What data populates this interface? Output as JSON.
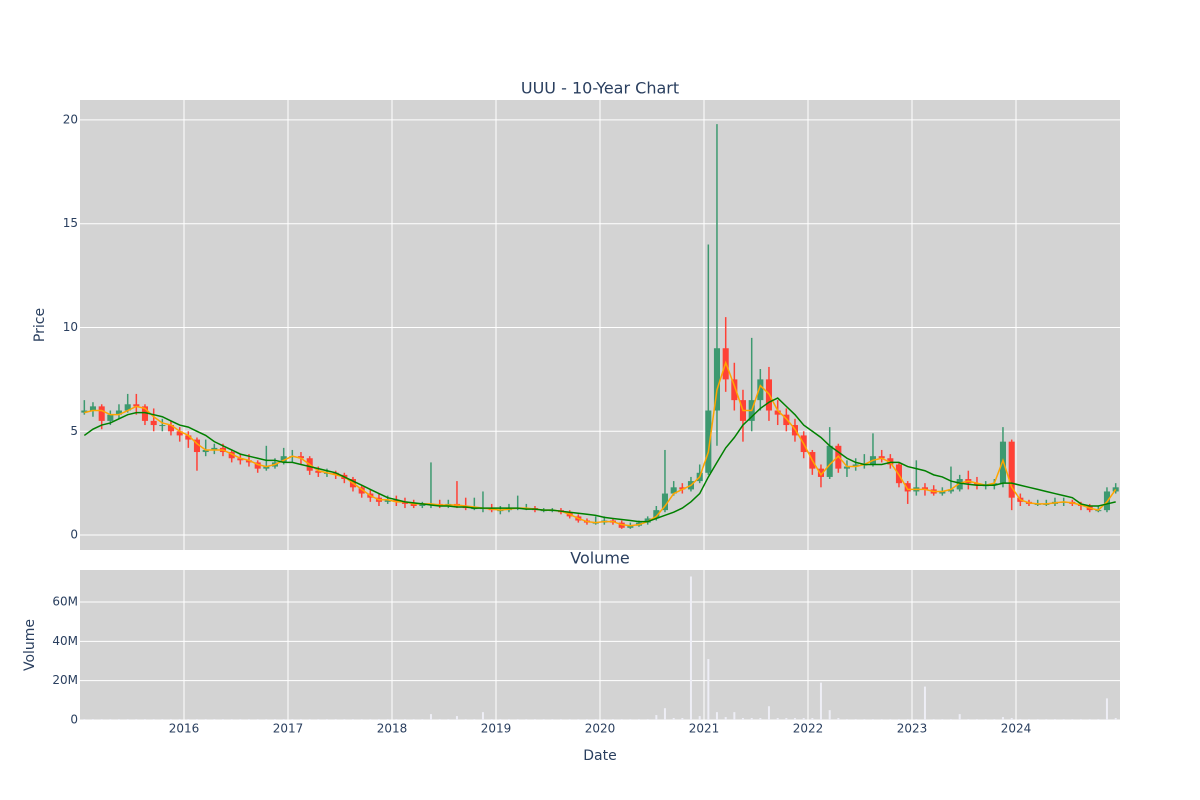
{
  "chart_data": [
    {
      "type": "candlestick",
      "title": "UUU - 10-Year Chart",
      "ylabel": "Price",
      "x": [
        2015,
        2015.083,
        2015.167,
        2015.25,
        2015.333,
        2015.417,
        2015.5,
        2015.583,
        2015.667,
        2015.75,
        2015.833,
        2015.917,
        2016,
        2016.083,
        2016.167,
        2016.25,
        2016.333,
        2016.417,
        2016.5,
        2016.583,
        2016.667,
        2016.75,
        2016.833,
        2016.917,
        2017,
        2017.083,
        2017.167,
        2017.25,
        2017.333,
        2017.417,
        2017.5,
        2017.583,
        2017.667,
        2017.75,
        2017.833,
        2017.917,
        2018,
        2018.083,
        2018.167,
        2018.25,
        2018.333,
        2018.417,
        2018.5,
        2018.583,
        2018.667,
        2018.75,
        2018.833,
        2018.917,
        2019,
        2019.083,
        2019.167,
        2019.25,
        2019.333,
        2019.417,
        2019.5,
        2019.583,
        2019.667,
        2019.75,
        2019.833,
        2019.917,
        2020,
        2020.083,
        2020.167,
        2020.25,
        2020.333,
        2020.417,
        2020.5,
        2020.583,
        2020.667,
        2020.75,
        2020.833,
        2020.917,
        2021,
        2021.083,
        2021.167,
        2021.25,
        2021.333,
        2021.417,
        2021.5,
        2021.583,
        2021.667,
        2021.75,
        2021.833,
        2021.917,
        2022,
        2022.083,
        2022.167,
        2022.25,
        2022.333,
        2022.417,
        2022.5,
        2022.583,
        2022.667,
        2022.75,
        2022.833,
        2022.917,
        2023,
        2023.083,
        2023.167,
        2023.25,
        2023.333,
        2023.417,
        2023.5,
        2023.583,
        2023.667,
        2023.75,
        2023.833,
        2023.917,
        2024,
        2024.083,
        2024.167,
        2024.25,
        2024.333,
        2024.417,
        2024.5,
        2024.583,
        2024.667,
        2024.75,
        2024.833,
        2024.917
      ],
      "open": [
        5.9,
        6.0,
        6.2,
        5.5,
        5.8,
        6.0,
        6.3,
        6.2,
        5.5,
        5.3,
        5.3,
        5.0,
        4.8,
        4.6,
        4.0,
        4.1,
        4.2,
        4.0,
        3.7,
        3.6,
        3.5,
        3.2,
        3.3,
        3.5,
        3.8,
        3.8,
        3.7,
        3.1,
        3.0,
        3.0,
        2.9,
        2.7,
        2.3,
        2.0,
        1.8,
        1.6,
        1.7,
        1.6,
        1.5,
        1.4,
        1.5,
        1.5,
        1.4,
        1.5,
        1.4,
        1.3,
        1.3,
        1.3,
        1.2,
        1.2,
        1.3,
        1.3,
        1.3,
        1.2,
        1.2,
        1.2,
        1.1,
        0.9,
        0.7,
        0.6,
        0.6,
        0.7,
        0.6,
        0.35,
        0.45,
        0.6,
        0.8,
        1.2,
        2.0,
        2.3,
        2.2,
        2.6,
        3.0,
        6.0,
        9.0,
        7.5,
        6.5,
        5.5,
        6.5,
        7.5,
        6.0,
        5.8,
        5.3,
        4.8,
        4.0,
        3.2,
        2.8,
        4.3,
        3.2,
        3.3,
        3.4,
        3.4,
        3.8,
        3.7,
        3.4,
        2.5,
        2.1,
        2.3,
        2.2,
        2.0,
        2.1,
        2.2,
        2.7,
        2.5,
        2.4,
        2.4,
        2.5,
        4.5,
        1.8,
        1.6,
        1.5,
        1.5,
        1.5,
        1.6,
        1.6,
        1.5,
        1.4,
        1.2,
        1.2,
        2.1
      ],
      "high": [
        6.5,
        6.4,
        6.3,
        6.0,
        6.3,
        6.8,
        6.8,
        6.3,
        6.1,
        5.6,
        5.5,
        5.2,
        5.0,
        4.7,
        4.6,
        4.4,
        4.4,
        4.1,
        3.9,
        3.9,
        3.6,
        4.3,
        3.7,
        4.2,
        4.1,
        4.0,
        3.8,
        3.3,
        3.2,
        3.1,
        3.0,
        2.8,
        2.4,
        2.2,
        2.0,
        1.9,
        1.9,
        1.8,
        1.7,
        1.6,
        3.5,
        1.7,
        1.7,
        2.6,
        1.8,
        1.8,
        2.1,
        1.5,
        1.4,
        1.5,
        1.9,
        1.5,
        1.4,
        1.3,
        1.3,
        1.3,
        1.2,
        1.0,
        0.8,
        0.9,
        0.9,
        0.8,
        0.7,
        0.6,
        0.7,
        0.9,
        1.4,
        4.1,
        2.6,
        2.5,
        2.8,
        3.4,
        14.0,
        19.8,
        10.5,
        8.3,
        7.0,
        9.5,
        8.0,
        8.1,
        6.5,
        6.1,
        5.6,
        5.0,
        4.1,
        3.4,
        5.2,
        4.4,
        3.6,
        3.7,
        3.9,
        4.9,
        4.1,
        3.9,
        3.5,
        2.6,
        3.6,
        2.5,
        2.4,
        2.3,
        3.3,
        2.9,
        3.1,
        2.8,
        2.6,
        2.7,
        5.2,
        4.6,
        2.0,
        1.7,
        1.7,
        1.7,
        1.8,
        1.8,
        1.7,
        1.6,
        1.5,
        1.4,
        2.3,
        2.5
      ],
      "low": [
        5.8,
        5.7,
        5.1,
        5.3,
        5.6,
        5.9,
        5.8,
        5.3,
        5.0,
        5.0,
        4.8,
        4.5,
        4.2,
        3.1,
        3.8,
        3.9,
        3.8,
        3.5,
        3.4,
        3.3,
        3.0,
        3.1,
        3.2,
        3.4,
        3.5,
        3.4,
        2.9,
        2.8,
        2.8,
        2.7,
        2.5,
        2.1,
        1.8,
        1.6,
        1.4,
        1.5,
        1.4,
        1.3,
        1.3,
        1.3,
        1.3,
        1.3,
        1.3,
        1.3,
        1.2,
        1.2,
        1.1,
        1.1,
        1.0,
        1.1,
        1.2,
        1.2,
        1.1,
        1.1,
        1.1,
        1.0,
        0.8,
        0.6,
        0.5,
        0.5,
        0.5,
        0.5,
        0.3,
        0.3,
        0.4,
        0.5,
        0.7,
        1.1,
        1.9,
        2.0,
        2.1,
        2.5,
        2.9,
        4.3,
        6.9,
        6.0,
        4.5,
        5.0,
        6.0,
        5.5,
        5.3,
        5.0,
        4.5,
        3.7,
        2.9,
        2.3,
        2.7,
        3.0,
        2.8,
        3.1,
        3.2,
        3.3,
        3.5,
        3.2,
        2.3,
        1.5,
        1.9,
        1.9,
        1.9,
        1.9,
        2.0,
        2.1,
        2.2,
        2.2,
        2.2,
        2.2,
        2.3,
        1.2,
        1.4,
        1.4,
        1.4,
        1.4,
        1.4,
        1.4,
        1.4,
        1.2,
        1.1,
        1.1,
        1.1,
        2.0
      ],
      "close": [
        6.0,
        6.2,
        5.5,
        5.8,
        6.0,
        6.3,
        6.2,
        5.5,
        5.3,
        5.3,
        5.0,
        4.8,
        4.6,
        4.0,
        4.1,
        4.2,
        4.0,
        3.7,
        3.6,
        3.5,
        3.2,
        3.3,
        3.5,
        3.8,
        3.8,
        3.7,
        3.1,
        3.0,
        3.0,
        2.9,
        2.7,
        2.3,
        2.0,
        1.8,
        1.6,
        1.7,
        1.6,
        1.5,
        1.4,
        1.5,
        1.5,
        1.4,
        1.5,
        1.4,
        1.3,
        1.3,
        1.3,
        1.2,
        1.2,
        1.3,
        1.3,
        1.3,
        1.2,
        1.2,
        1.2,
        1.1,
        0.9,
        0.7,
        0.6,
        0.6,
        0.7,
        0.6,
        0.35,
        0.45,
        0.6,
        0.8,
        1.2,
        2.0,
        2.3,
        2.2,
        2.6,
        3.0,
        6.0,
        9.0,
        7.5,
        6.5,
        5.5,
        6.5,
        7.5,
        6.0,
        5.8,
        5.3,
        4.8,
        4.0,
        3.2,
        2.8,
        4.3,
        3.2,
        3.3,
        3.4,
        3.4,
        3.8,
        3.7,
        3.4,
        2.5,
        2.1,
        2.3,
        2.2,
        2.0,
        2.1,
        2.2,
        2.7,
        2.5,
        2.4,
        2.4,
        2.5,
        4.5,
        1.8,
        1.6,
        1.5,
        1.5,
        1.5,
        1.6,
        1.6,
        1.5,
        1.4,
        1.2,
        1.2,
        2.1,
        2.3
      ],
      "increasing_color": "#3d9970",
      "decreasing_color": "#ff4136",
      "series": [
        {
          "color": "#ffa500",
          "values": [
            5.9,
            6.0,
            6.0,
            5.8,
            5.8,
            6.0,
            6.2,
            6.1,
            5.7,
            5.4,
            5.3,
            5.0,
            4.8,
            4.4,
            4.1,
            4.1,
            4.1,
            3.9,
            3.7,
            3.6,
            3.4,
            3.3,
            3.4,
            3.6,
            3.8,
            3.7,
            3.4,
            3.1,
            3.0,
            2.9,
            2.8,
            2.5,
            2.2,
            1.9,
            1.7,
            1.7,
            1.6,
            1.6,
            1.5,
            1.5,
            1.5,
            1.45,
            1.45,
            1.45,
            1.4,
            1.35,
            1.3,
            1.25,
            1.2,
            1.25,
            1.3,
            1.3,
            1.25,
            1.2,
            1.2,
            1.15,
            1.0,
            0.8,
            0.65,
            0.6,
            0.65,
            0.65,
            0.5,
            0.45,
            0.5,
            0.65,
            0.9,
            1.4,
            2.0,
            2.2,
            2.4,
            2.8,
            4.0,
            7.0,
            8.3,
            7.2,
            6.0,
            6.0,
            7.2,
            6.8,
            6.0,
            5.6,
            5.1,
            4.4,
            3.6,
            2.9,
            3.4,
            3.8,
            3.3,
            3.3,
            3.4,
            3.6,
            3.7,
            3.5,
            2.9,
            2.2,
            2.2,
            2.2,
            2.1,
            2.1,
            2.2,
            2.5,
            2.6,
            2.5,
            2.4,
            2.5,
            3.6,
            2.3,
            1.7,
            1.55,
            1.5,
            1.5,
            1.55,
            1.6,
            1.55,
            1.45,
            1.3,
            1.2,
            1.6,
            2.2
          ]
        },
        {
          "color": "#008000",
          "values": [
            4.8,
            5.1,
            5.3,
            5.4,
            5.6,
            5.8,
            5.9,
            5.9,
            5.8,
            5.7,
            5.5,
            5.3,
            5.2,
            5.0,
            4.8,
            4.5,
            4.3,
            4.1,
            3.9,
            3.8,
            3.7,
            3.6,
            3.6,
            3.5,
            3.5,
            3.4,
            3.3,
            3.2,
            3.1,
            3.0,
            2.8,
            2.6,
            2.4,
            2.2,
            2.0,
            1.8,
            1.7,
            1.6,
            1.55,
            1.5,
            1.45,
            1.4,
            1.4,
            1.35,
            1.35,
            1.3,
            1.3,
            1.3,
            1.3,
            1.3,
            1.3,
            1.25,
            1.25,
            1.2,
            1.2,
            1.15,
            1.1,
            1.05,
            1.0,
            0.95,
            0.85,
            0.8,
            0.75,
            0.7,
            0.65,
            0.65,
            0.8,
            0.95,
            1.1,
            1.3,
            1.6,
            2.0,
            2.8,
            3.5,
            4.2,
            4.7,
            5.3,
            5.7,
            6.1,
            6.4,
            6.6,
            6.2,
            5.8,
            5.3,
            5.0,
            4.7,
            4.3,
            4.0,
            3.7,
            3.5,
            3.4,
            3.4,
            3.4,
            3.5,
            3.5,
            3.3,
            3.2,
            3.1,
            2.9,
            2.8,
            2.6,
            2.5,
            2.45,
            2.4,
            2.4,
            2.4,
            2.5,
            2.5,
            2.4,
            2.3,
            2.2,
            2.1,
            2.0,
            1.9,
            1.8,
            1.5,
            1.4,
            1.4,
            1.5,
            1.6
          ]
        }
      ],
      "xlim": [
        2015,
        2025
      ],
      "xticks": [
        2016,
        2017,
        2018,
        2019,
        2020,
        2021,
        2022,
        2023,
        2024
      ],
      "ylim": [
        -0.72,
        20.96
      ],
      "yticks": [
        0,
        5,
        10,
        15,
        20
      ],
      "grid": true
    },
    {
      "type": "bar",
      "title": "Volume",
      "ylabel": "Volume",
      "xlabel": "Date",
      "color": "#eeeef6",
      "values": [
        500000,
        500000,
        500000,
        500000,
        500000,
        500000,
        500000,
        500000,
        500000,
        500000,
        500000,
        500000,
        500000,
        500000,
        500000,
        500000,
        500000,
        500000,
        500000,
        500000,
        500000,
        500000,
        500000,
        500000,
        500000,
        500000,
        500000,
        500000,
        500000,
        500000,
        500000,
        500000,
        500000,
        500000,
        500000,
        500000,
        500000,
        500000,
        500000,
        500000,
        3000000,
        500000,
        500000,
        2000000,
        500000,
        500000,
        4000000,
        500000,
        500000,
        500000,
        500000,
        500000,
        500000,
        500000,
        500000,
        500000,
        500000,
        500000,
        500000,
        500000,
        500000,
        500000,
        500000,
        500000,
        500000,
        500000,
        2500000,
        6000000,
        1000000,
        1000000,
        73000000,
        2000000,
        31000000,
        4000000,
        1500000,
        4000000,
        1000000,
        1000000,
        1000000,
        7000000,
        1000000,
        1000000,
        1000000,
        1000000,
        1000000,
        19000000,
        5000000,
        1000000,
        500000,
        500000,
        500000,
        500000,
        500000,
        500000,
        500000,
        500000,
        500000,
        17000000,
        500000,
        500000,
        500000,
        3000000,
        500000,
        500000,
        500000,
        500000,
        1500000,
        1000000,
        500000,
        500000,
        500000,
        500000,
        500000,
        500000,
        500000,
        500000,
        500000,
        500000,
        11000000,
        1000000
      ],
      "ylim": [
        0,
        76300000
      ],
      "yticks": [
        0,
        {
          "value": 20000000,
          "label": "20M"
        },
        {
          "value": 40000000,
          "label": "40M"
        },
        {
          "value": 60000000,
          "label": "60M"
        }
      ],
      "grid": true
    }
  ]
}
